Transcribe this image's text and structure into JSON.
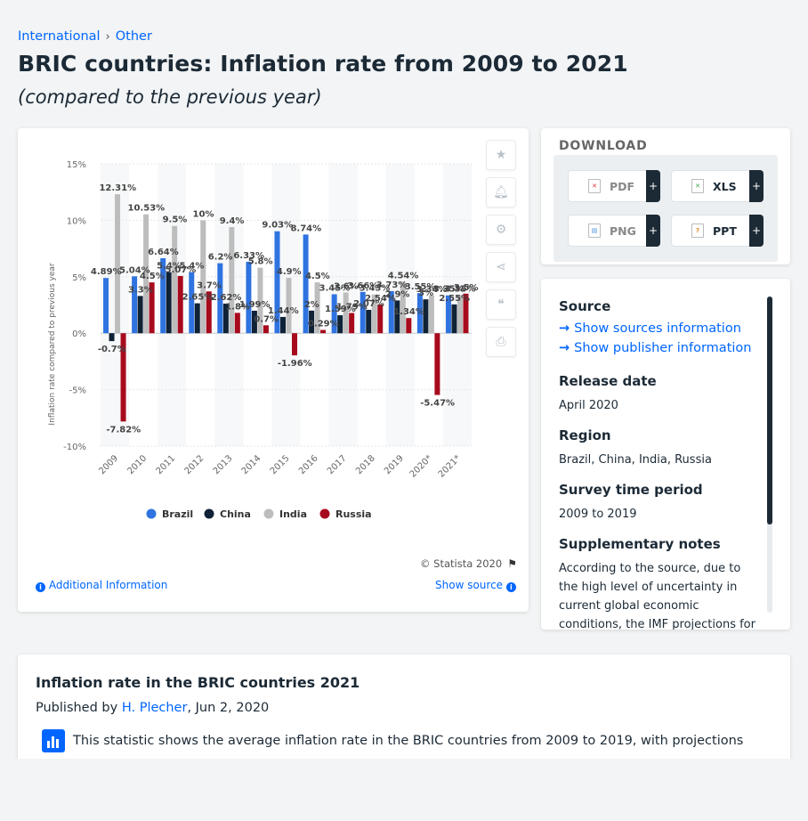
{
  "breadcrumb": [
    "International",
    "Other"
  ],
  "page_title": "BRIC countries: Inflation rate from 2009 to 2021",
  "page_subtitle": "(compared to the previous year)",
  "chart_tools": [
    "favorite-icon",
    "bell-icon",
    "gear-icon",
    "share-icon",
    "quote-icon",
    "print-icon"
  ],
  "copyright": "© Statista 2020",
  "additional_info": "Additional Information",
  "show_source": "Show source",
  "download": {
    "title": "DOWNLOAD",
    "buttons": [
      {
        "label": "PDF",
        "icon": "pdf-file-icon",
        "color": "#e03b3b"
      },
      {
        "label": "XLS",
        "icon": "xls-file-icon",
        "color": "#3aa845"
      },
      {
        "label": "PNG",
        "icon": "png-file-icon",
        "color": "#4a90d9"
      },
      {
        "label": "PPT",
        "icon": "ppt-file-icon",
        "color": "#e8801c"
      }
    ],
    "plus": "+"
  },
  "info": {
    "source_h": "Source",
    "sources_link": "Show sources information",
    "publisher_link": "Show publisher information",
    "release_h": "Release date",
    "release_v": "April 2020",
    "region_h": "Region",
    "region_v": "Brazil, China, India, Russia",
    "survey_h": "Survey time period",
    "survey_v": "2009 to 2019",
    "notes_h": "Supplementary notes",
    "notes_v": "According to the source, due to the high level of uncertainty in current global economic conditions, the IMF projections for these"
  },
  "statistic": {
    "title": "Inflation rate in the BRIC countries 2021",
    "published_prefix": "Published by",
    "author": "H. Plecher",
    "date": ", Jun 2, 2020",
    "description": "This statistic shows the average inflation rate in the BRIC countries from 2009 to 2019, with projections"
  },
  "chart_data": {
    "type": "bar",
    "ylabel": "Inflation rate compared to previous year",
    "ylim": [
      -10,
      15
    ],
    "yticks": [
      "15%",
      "10%",
      "5%",
      "0%",
      "-5%",
      "-10%"
    ],
    "ytick_values": [
      15,
      10,
      5,
      0,
      -5,
      -10
    ],
    "categories": [
      "2009",
      "2010",
      "2011",
      "2012",
      "2013",
      "2014",
      "2015",
      "2016",
      "2017",
      "2018",
      "2019",
      "2020*",
      "2021*"
    ],
    "legend_position": "bottom",
    "series": [
      {
        "name": "Brazil",
        "color": "#2f73e0",
        "values": [
          4.89,
          5.04,
          6.64,
          5.4,
          6.2,
          6.33,
          9.03,
          8.74,
          3.45,
          3.66,
          3.73,
          3.55,
          3.35
        ],
        "labels": [
          "4.89%",
          "5.04%",
          "6.64%",
          "5.4%",
          "6.2%",
          "6.33%",
          "9.03%",
          "8.74%",
          "3.45%",
          "3.66%",
          "3.73%",
          "3.55%",
          "3.35%"
        ]
      },
      {
        "name": "China",
        "color": "#0f2236",
        "values": [
          -0.7,
          3.3,
          5.4,
          2.65,
          2.62,
          1.99,
          1.44,
          2.0,
          1.59,
          2.07,
          2.9,
          3.0,
          2.55
        ],
        "labels": [
          "-0.7%",
          "3.3%",
          "5.4%",
          "2.65%",
          "2.62%",
          "1.99%",
          "1.44%",
          "2%",
          "1.59%",
          "2.07%",
          "2.9%",
          "3%",
          "2.55%"
        ]
      },
      {
        "name": "India",
        "color": "#bdbdbd",
        "values": [
          12.31,
          10.53,
          9.5,
          10.0,
          9.4,
          5.8,
          4.9,
          4.5,
          3.6,
          3.43,
          4.54,
          3.34,
          3.35
        ],
        "labels": [
          "12.31%",
          "10.53%",
          "9.5%",
          "10%",
          "9.4%",
          "5.8%",
          "4.9%",
          "4.5%",
          "3.6%",
          "3.43%",
          "4.54%",
          "3.34%",
          "3.35%"
        ]
      },
      {
        "name": "Russia",
        "color": "#a70a1c",
        "values": [
          -7.82,
          4.5,
          5.07,
          3.7,
          1.8,
          0.7,
          -1.96,
          0.29,
          1.79,
          2.54,
          1.34,
          -5.47,
          3.5
        ],
        "labels": [
          "-7.82%",
          "4.5%",
          "5.07%",
          "3.7%",
          "1.8%",
          "0.7%",
          "-1.96%",
          "0.29%",
          "1.79%",
          "2.54%",
          "1.34%",
          "-5.47%",
          "3.5%"
        ]
      }
    ]
  }
}
